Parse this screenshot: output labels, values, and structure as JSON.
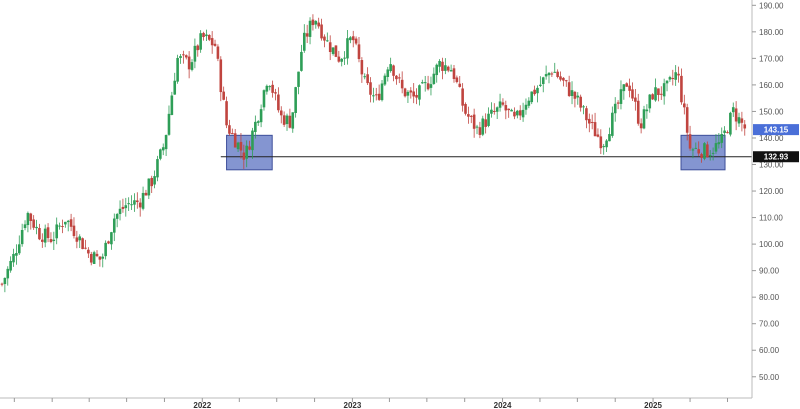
{
  "chart_data": {
    "type": "candlestick",
    "x_ticks": [
      "2022",
      "2023",
      "2024",
      "2025"
    ],
    "x_tick_dates": [
      "2022-01-01",
      "2023-01-01",
      "2024-01-01",
      "2025-01-01"
    ],
    "x_range": [
      "2020-09-01",
      "2025-08-15"
    ],
    "ylim": [
      42,
      192
    ],
    "y_ticks": [
      50,
      60,
      70,
      80,
      90,
      100,
      110,
      120,
      130,
      140,
      150,
      160,
      170,
      180,
      190
    ],
    "y_tick_labels": [
      "50.00",
      "60.00",
      "70.00",
      "80.00",
      "90.00",
      "100.00",
      "110.00",
      "120.00",
      "130.00",
      "140.00",
      "150.00",
      "160.00",
      "170.00",
      "180.00",
      "190.00"
    ],
    "y_axis_side": "right",
    "grid": false,
    "colors": {
      "up": "#2e9e57",
      "down": "#c0443f",
      "zone_fill": "#6f83c9",
      "zone_stroke": "#3e4f9a",
      "current_tag": "#4a6fd8",
      "level_tag": "#111111",
      "level_line": "#222222"
    },
    "current_price": {
      "value": 143.15,
      "label": "143.15"
    },
    "support_level": {
      "value": 132.93,
      "label": "132.93",
      "from": "2022-02-15"
    },
    "zones": [
      {
        "x_from": "2022-03-01",
        "x_to": "2022-06-20",
        "y_from": 128,
        "y_to": 141
      },
      {
        "x_from": "2025-03-10",
        "x_to": "2025-06-25",
        "y_from": 128,
        "y_to": 141
      }
    ],
    "price_path": [
      [
        "2020-09-01",
        85
      ],
      [
        "2020-10-01",
        96
      ],
      [
        "2020-11-01",
        112
      ],
      [
        "2020-12-01",
        104
      ],
      [
        "2021-01-01",
        102
      ],
      [
        "2021-02-01",
        110
      ],
      [
        "2021-03-01",
        104
      ],
      [
        "2021-04-01",
        96
      ],
      [
        "2021-05-01",
        94
      ],
      [
        "2021-06-01",
        110
      ],
      [
        "2021-07-01",
        115
      ],
      [
        "2021-08-01",
        116
      ],
      [
        "2021-09-01",
        124
      ],
      [
        "2021-10-01",
        138
      ],
      [
        "2021-11-01",
        170
      ],
      [
        "2021-12-01",
        168
      ],
      [
        "2022-01-01",
        178
      ],
      [
        "2022-02-01",
        175
      ],
      [
        "2022-03-01",
        145
      ],
      [
        "2022-04-15",
        133
      ],
      [
        "2022-05-15",
        148
      ],
      [
        "2022-06-10",
        164
      ],
      [
        "2022-07-10",
        148
      ],
      [
        "2022-08-05",
        146
      ],
      [
        "2022-09-01",
        175
      ],
      [
        "2022-10-01",
        186
      ],
      [
        "2022-11-01",
        176
      ],
      [
        "2022-12-01",
        170
      ],
      [
        "2023-01-01",
        178
      ],
      [
        "2023-02-01",
        160
      ],
      [
        "2023-03-01",
        154
      ],
      [
        "2023-04-01",
        170
      ],
      [
        "2023-05-01",
        158
      ],
      [
        "2023-06-01",
        155
      ],
      [
        "2023-07-01",
        160
      ],
      [
        "2023-08-01",
        168
      ],
      [
        "2023-09-01",
        166
      ],
      [
        "2023-10-01",
        150
      ],
      [
        "2023-11-01",
        143
      ],
      [
        "2023-12-01",
        148
      ],
      [
        "2024-01-01",
        152
      ],
      [
        "2024-02-01",
        146
      ],
      [
        "2024-03-01",
        155
      ],
      [
        "2024-04-01",
        160
      ],
      [
        "2024-05-01",
        166
      ],
      [
        "2024-06-01",
        160
      ],
      [
        "2024-07-01",
        154
      ],
      [
        "2024-08-01",
        145
      ],
      [
        "2024-09-01",
        138
      ],
      [
        "2024-10-01",
        150
      ],
      [
        "2024-11-01",
        162
      ],
      [
        "2024-12-01",
        145
      ],
      [
        "2025-01-01",
        157
      ],
      [
        "2025-02-01",
        158
      ],
      [
        "2025-03-01",
        165
      ],
      [
        "2025-04-01",
        136
      ],
      [
        "2025-05-15",
        135
      ],
      [
        "2025-06-15",
        138
      ],
      [
        "2025-07-15",
        150
      ],
      [
        "2025-08-15",
        143
      ]
    ]
  }
}
